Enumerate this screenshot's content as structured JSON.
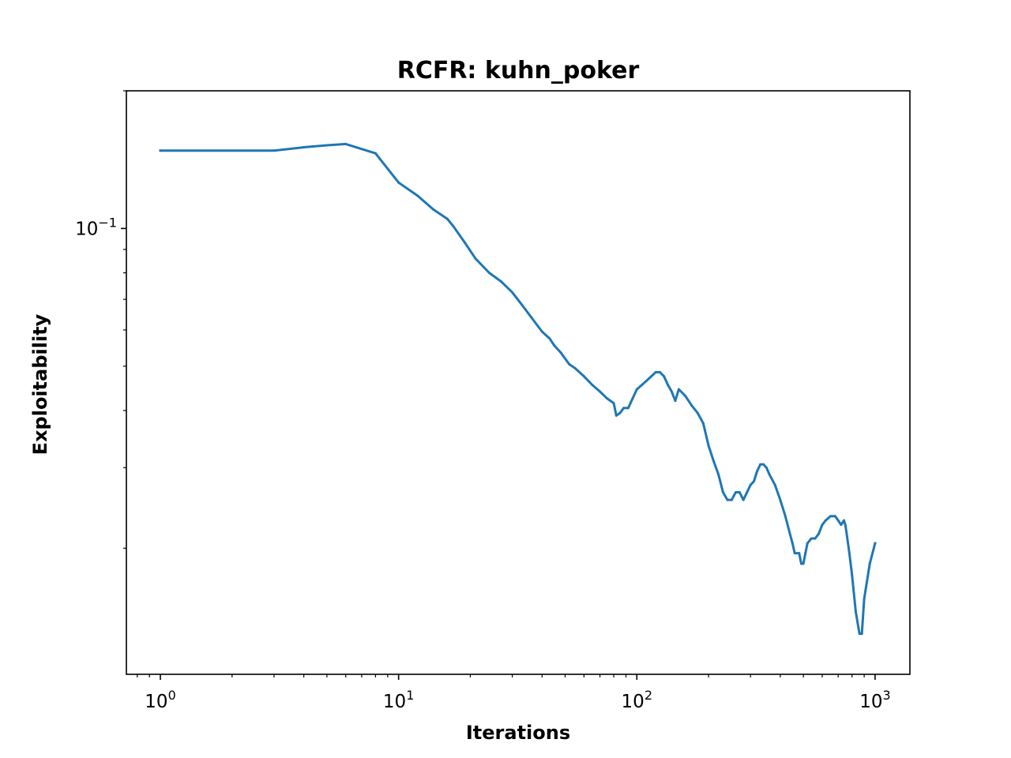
{
  "chart_data": {
    "type": "line",
    "title": "RCFR: kuhn_poker",
    "xlabel": "Iterations",
    "ylabel": "Exploitability",
    "xscale": "log",
    "yscale": "log",
    "xlim": [
      0.72,
      1400
    ],
    "ylim": [
      0.0106,
      0.2
    ],
    "grid": false,
    "x_ticks": [
      {
        "base": "10",
        "exp": "0",
        "value": 1
      },
      {
        "base": "10",
        "exp": "1",
        "value": 10
      },
      {
        "base": "10",
        "exp": "2",
        "value": 100
      },
      {
        "base": "10",
        "exp": "3",
        "value": 1000
      }
    ],
    "y_ticks": [
      {
        "base": "10",
        "exp": "−1",
        "value": 0.1
      }
    ],
    "series": [
      {
        "color": "#1f77b4",
        "x": [
          1,
          3,
          4,
          5,
          6,
          8,
          10,
          12,
          14,
          16,
          17,
          19,
          21,
          24,
          27,
          30,
          33,
          36,
          40,
          43,
          45,
          48,
          52,
          55,
          60,
          65,
          70,
          75,
          80,
          82,
          85,
          88,
          92,
          96,
          100,
          105,
          110,
          115,
          120,
          125,
          130,
          135,
          140,
          145,
          150,
          160,
          170,
          180,
          190,
          200,
          210,
          220,
          230,
          240,
          250,
          260,
          270,
          280,
          290,
          300,
          310,
          320,
          330,
          340,
          350,
          360,
          380,
          400,
          420,
          450,
          460,
          480,
          490,
          500,
          510,
          520,
          540,
          560,
          580,
          600,
          620,
          650,
          680,
          700,
          720,
          740,
          750,
          760,
          780,
          800,
          830,
          860,
          880,
          900,
          950,
          1000
        ],
        "y": [
          0.148,
          0.148,
          0.1505,
          0.152,
          0.153,
          0.146,
          0.126,
          0.118,
          0.11,
          0.105,
          0.101,
          0.093,
          0.086,
          0.08,
          0.0765,
          0.0725,
          0.068,
          0.064,
          0.0595,
          0.0575,
          0.0555,
          0.0535,
          0.0505,
          0.0495,
          0.0475,
          0.0455,
          0.044,
          0.0425,
          0.0415,
          0.039,
          0.0395,
          0.0405,
          0.0405,
          0.0425,
          0.0445,
          0.0455,
          0.0465,
          0.0475,
          0.0485,
          0.0485,
          0.0475,
          0.0455,
          0.044,
          0.042,
          0.0445,
          0.043,
          0.041,
          0.0395,
          0.0375,
          0.0335,
          0.031,
          0.029,
          0.0265,
          0.0255,
          0.0255,
          0.0265,
          0.0265,
          0.0255,
          0.0265,
          0.0275,
          0.028,
          0.0295,
          0.0305,
          0.0305,
          0.03,
          0.029,
          0.0275,
          0.0255,
          0.0235,
          0.0205,
          0.0195,
          0.0195,
          0.0185,
          0.0185,
          0.0195,
          0.0205,
          0.021,
          0.021,
          0.0215,
          0.0225,
          0.023,
          0.0235,
          0.0235,
          0.023,
          0.0225,
          0.023,
          0.0225,
          0.0215,
          0.0195,
          0.0175,
          0.0145,
          0.013,
          0.013,
          0.0155,
          0.0185,
          0.0205
        ]
      }
    ]
  }
}
